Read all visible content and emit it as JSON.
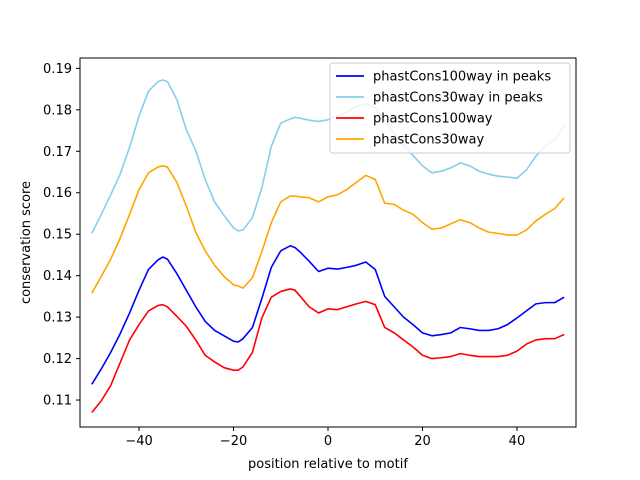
{
  "chart_data": {
    "type": "line",
    "title": "",
    "xlabel": "position relative to motif",
    "ylabel": "conservation score",
    "xlim": [
      -52.5,
      52.5
    ],
    "ylim": [
      0.1035,
      0.1925
    ],
    "xticks": [
      -40,
      -20,
      0,
      20,
      40
    ],
    "xtick_labels": [
      "−40",
      "−20",
      "0",
      "20",
      "40"
    ],
    "yticks": [
      0.11,
      0.12,
      0.13,
      0.14,
      0.15,
      0.16,
      0.17,
      0.18,
      0.19
    ],
    "ytick_labels": [
      "0.11",
      "0.12",
      "0.13",
      "0.14",
      "0.15",
      "0.16",
      "0.17",
      "0.18",
      "0.19"
    ],
    "grid": false,
    "legend_position": "top-right",
    "series": [
      {
        "name": "phastCons100way in peaks",
        "color": "#0000ff",
        "x": [
          -50,
          -48,
          -46,
          -44,
          -42,
          -40,
          -38,
          -36,
          -35,
          -34,
          -32,
          -30,
          -28,
          -26,
          -24,
          -22,
          -20,
          -19,
          -18,
          -16,
          -14,
          -12,
          -10,
          -8,
          -7,
          -6,
          -4,
          -2,
          0,
          2,
          4,
          6,
          8,
          10,
          12,
          14,
          16,
          18,
          20,
          22,
          24,
          26,
          28,
          30,
          32,
          34,
          36,
          38,
          40,
          42,
          44,
          46,
          48,
          50
        ],
        "y": [
          0.1138,
          0.1175,
          0.1215,
          0.126,
          0.131,
          0.1365,
          0.1415,
          0.1438,
          0.1445,
          0.144,
          0.1405,
          0.1365,
          0.1325,
          0.129,
          0.1268,
          0.1255,
          0.1242,
          0.124,
          0.1248,
          0.1275,
          0.1345,
          0.142,
          0.146,
          0.1472,
          0.1468,
          0.1458,
          0.1435,
          0.141,
          0.1418,
          0.1416,
          0.142,
          0.1425,
          0.1433,
          0.1415,
          0.135,
          0.1325,
          0.13,
          0.1282,
          0.1262,
          0.1255,
          0.1258,
          0.1262,
          0.1275,
          0.1272,
          0.1268,
          0.1268,
          0.1272,
          0.1282,
          0.1298,
          0.1315,
          0.1332,
          0.1335,
          0.1335,
          0.1348
        ]
      },
      {
        "name": "phastCons30way in peaks",
        "color": "#87ceeb",
        "x": [
          -50,
          -48,
          -46,
          -44,
          -42,
          -40,
          -38,
          -36,
          -35,
          -34,
          -32,
          -30,
          -28,
          -26,
          -24,
          -22,
          -20,
          -19,
          -18,
          -16,
          -14,
          -12,
          -10,
          -8,
          -7,
          -6,
          -4,
          -2,
          0,
          2,
          4,
          6,
          8,
          10,
          12,
          14,
          16,
          18,
          20,
          22,
          24,
          26,
          28,
          30,
          32,
          34,
          36,
          38,
          40,
          42,
          44,
          46,
          48,
          50
        ],
        "y": [
          0.1502,
          0.1548,
          0.1595,
          0.1645,
          0.171,
          0.1785,
          0.1845,
          0.1868,
          0.1872,
          0.1868,
          0.1825,
          0.1752,
          0.1702,
          0.1632,
          0.1578,
          0.1545,
          0.1515,
          0.1508,
          0.151,
          0.154,
          0.1612,
          0.1712,
          0.1768,
          0.1778,
          0.1782,
          0.178,
          0.1775,
          0.1772,
          0.1776,
          0.1785,
          0.1795,
          0.1808,
          0.1815,
          0.1805,
          0.1775,
          0.1742,
          0.1715,
          0.169,
          0.1665,
          0.1648,
          0.1652,
          0.166,
          0.1672,
          0.1665,
          0.1652,
          0.1645,
          0.164,
          0.1638,
          0.1635,
          0.1655,
          0.1688,
          0.1712,
          0.1728,
          0.1762
        ]
      },
      {
        "name": "phastCons100way",
        "color": "#ff0000",
        "x": [
          -50,
          -48,
          -46,
          -44,
          -42,
          -40,
          -38,
          -36,
          -35,
          -34,
          -32,
          -30,
          -28,
          -26,
          -24,
          -22,
          -20,
          -19,
          -18,
          -16,
          -14,
          -12,
          -10,
          -8,
          -7,
          -6,
          -4,
          -2,
          0,
          2,
          4,
          6,
          8,
          10,
          12,
          14,
          16,
          18,
          20,
          22,
          24,
          26,
          28,
          30,
          32,
          34,
          36,
          38,
          40,
          42,
          44,
          46,
          48,
          50
        ],
        "y": [
          0.107,
          0.1098,
          0.1135,
          0.119,
          0.1245,
          0.1282,
          0.1315,
          0.1328,
          0.133,
          0.1325,
          0.1302,
          0.1278,
          0.1245,
          0.1208,
          0.1192,
          0.1178,
          0.1172,
          0.1172,
          0.118,
          0.1215,
          0.1298,
          0.1348,
          0.1362,
          0.1368,
          0.1365,
          0.1352,
          0.1325,
          0.131,
          0.132,
          0.1318,
          0.1325,
          0.1332,
          0.1338,
          0.133,
          0.1275,
          0.1262,
          0.1245,
          0.1228,
          0.1208,
          0.12,
          0.1202,
          0.1205,
          0.1212,
          0.1208,
          0.1205,
          0.1205,
          0.1205,
          0.1208,
          0.1218,
          0.1235,
          0.1245,
          0.1248,
          0.1248,
          0.1258
        ]
      },
      {
        "name": "phastCons30way",
        "color": "#ffa500",
        "x": [
          -50,
          -48,
          -46,
          -44,
          -42,
          -40,
          -38,
          -36,
          -35,
          -34,
          -32,
          -30,
          -28,
          -26,
          -24,
          -22,
          -20,
          -19,
          -18,
          -16,
          -14,
          -12,
          -10,
          -8,
          -7,
          -6,
          -4,
          -2,
          0,
          2,
          4,
          6,
          8,
          10,
          12,
          14,
          16,
          18,
          20,
          22,
          24,
          26,
          28,
          30,
          32,
          34,
          36,
          38,
          40,
          42,
          44,
          46,
          48,
          50
        ],
        "y": [
          0.1358,
          0.1398,
          0.144,
          0.149,
          0.1548,
          0.1608,
          0.1648,
          0.1662,
          0.1665,
          0.1662,
          0.1625,
          0.1568,
          0.1505,
          0.146,
          0.1425,
          0.1398,
          0.1378,
          0.1375,
          0.137,
          0.1395,
          0.1458,
          0.1528,
          0.1578,
          0.1592,
          0.1592,
          0.159,
          0.1588,
          0.1578,
          0.159,
          0.1595,
          0.1608,
          0.1625,
          0.1642,
          0.1632,
          0.1575,
          0.1572,
          0.1558,
          0.1548,
          0.1528,
          0.1512,
          0.1515,
          0.1525,
          0.1535,
          0.1528,
          0.1515,
          0.1505,
          0.1502,
          0.1498,
          0.1498,
          0.151,
          0.1532,
          0.1548,
          0.1562,
          0.1588
        ]
      }
    ]
  }
}
